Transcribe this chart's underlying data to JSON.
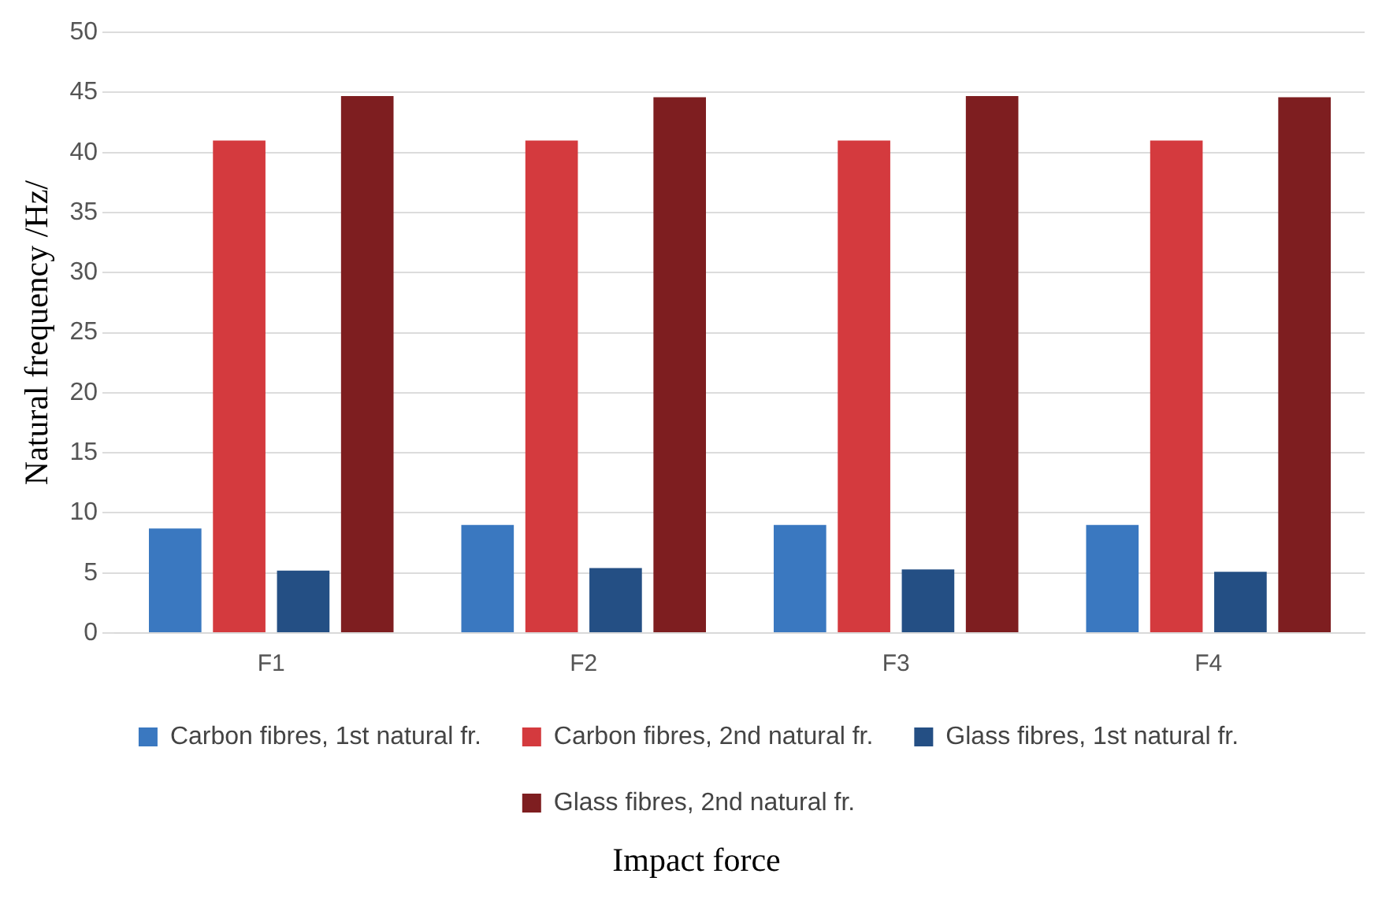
{
  "chart_data": {
    "type": "bar",
    "xlabel": "Impact force",
    "ylabel": "Natural frequency /Hz/",
    "categories": [
      "F1",
      "F2",
      "F3",
      "F4"
    ],
    "series": [
      {
        "name": "Carbon fibres, 1st natural fr.",
        "color": "#3a78c0",
        "values": [
          8.7,
          9.0,
          9.0,
          9.0
        ]
      },
      {
        "name": "Carbon fibres, 2nd natural fr.",
        "color": "#d43a3e",
        "values": [
          41,
          41,
          41,
          41
        ]
      },
      {
        "name": "Glass fibres, 1st natural fr.",
        "color": "#244f84",
        "values": [
          5.2,
          5.4,
          5.3,
          5.1
        ]
      },
      {
        "name": "Glass fibres, 2nd natural fr.",
        "color": "#7e1e20",
        "values": [
          44.7,
          44.6,
          44.7,
          44.6
        ]
      }
    ],
    "ylim": [
      0,
      50
    ],
    "yticks": [
      0,
      5,
      10,
      15,
      20,
      25,
      30,
      35,
      40,
      45,
      50
    ],
    "grid": "y",
    "legend": "bottom"
  }
}
